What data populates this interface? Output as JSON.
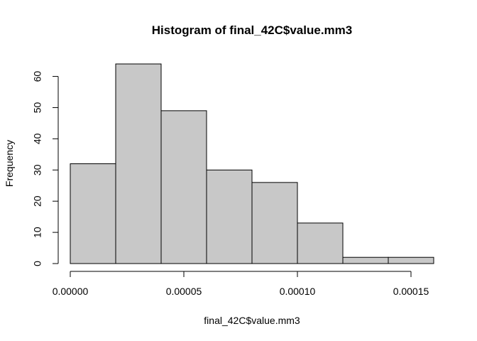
{
  "chart_data": {
    "type": "bar",
    "title": "Histogram of final_42C$value.mm3",
    "xlabel": "final_42C$value.mm3",
    "ylabel": "Frequency",
    "bin_edges": [
      0,
      2e-05,
      4e-05,
      6e-05,
      8e-05,
      0.0001,
      0.00012,
      0.00014,
      0.00016
    ],
    "values": [
      32,
      64,
      49,
      30,
      26,
      13,
      2,
      2
    ],
    "xlim": [
      0,
      0.00016
    ],
    "ylim": [
      0,
      64
    ],
    "x_ticks": [
      0,
      5e-05,
      0.0001,
      0.00015
    ],
    "x_tick_labels": [
      "0.00000",
      "0.00005",
      "0.00010",
      "0.00015"
    ],
    "y_ticks": [
      0,
      10,
      20,
      30,
      40,
      50,
      60
    ],
    "y_tick_labels": [
      "0",
      "10",
      "20",
      "30",
      "40",
      "50",
      "60"
    ],
    "grid": false,
    "colors": {
      "bar_fill": "#c8c8c8",
      "bar_stroke": "#000000"
    }
  }
}
